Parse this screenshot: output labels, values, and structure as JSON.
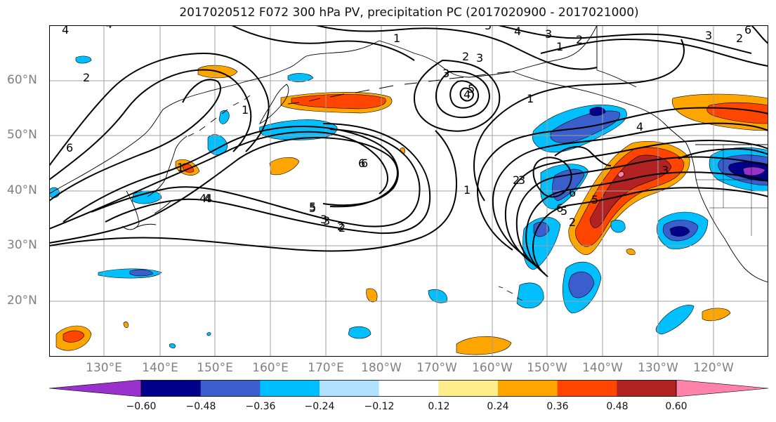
{
  "title": "2017020512 F072 300 hPa PV, precipitation PC (2017020900 - 2017021000)",
  "lat_labels": [
    "60°N",
    "50°N",
    "40°N",
    "30°N",
    "20°N"
  ],
  "lon_labels": [
    "130°E",
    "140°E",
    "150°E",
    "160°E",
    "170°E",
    "180°W",
    "170°W",
    "160°W",
    "150°W",
    "140°W",
    "130°W",
    "120°W"
  ],
  "colorbar": {
    "ticks": [
      "−0.60",
      "−0.48",
      "−0.36",
      "−0.24",
      "−0.12",
      "0.12",
      "0.24",
      "0.36",
      "0.48",
      "0.60"
    ],
    "colors": [
      "#9932cc",
      "#00008b",
      "#3a5fcd",
      "#00bfff",
      "#b0e2ff",
      "#ffffff",
      "#ffec8b",
      "#ffa500",
      "#ff4500",
      "#b22222",
      "#ff82ab"
    ]
  },
  "contour_labels": [
    "4",
    "4",
    "2",
    "6",
    "1",
    "1",
    "5",
    "4",
    "3",
    "2",
    "1",
    "2",
    "3",
    "3",
    "4",
    "5",
    "6",
    "1",
    "2",
    "3",
    "4",
    "5",
    "6",
    "2",
    "3",
    "1",
    "6",
    "5",
    "4",
    "3",
    "2",
    "1",
    "4",
    "2",
    "6",
    "3",
    "5",
    "6",
    "2",
    "3",
    "4",
    "5"
  ],
  "colors": {
    "contour": "#000000",
    "coast": "#000000",
    "grid": "#a0a0a0",
    "axis_label": "#808080"
  }
}
